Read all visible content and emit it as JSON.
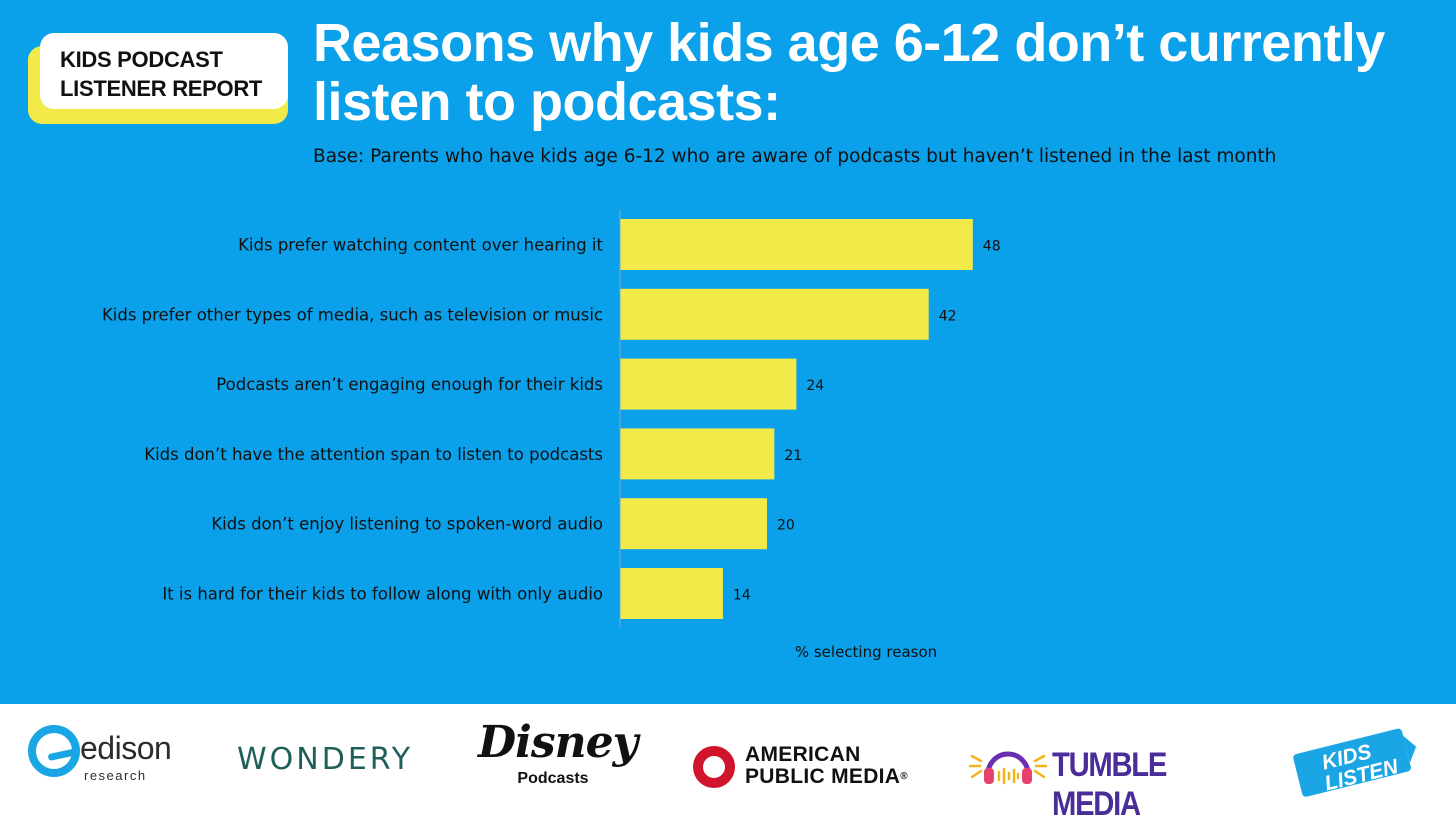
{
  "header": {
    "badge_line1": "KIDS PODCAST",
    "badge_line2": "LISTENER REPORT",
    "title": "Reasons why kids age 6-12 don’t currently listen to podcasts:",
    "subtitle": "Base: Parents who have kids age 6-12 who are aware of podcasts but haven’t listened in the last month"
  },
  "colors": {
    "background": "#0aa0ea",
    "bar": "#f1ea48",
    "badge_accent": "#f1ea48",
    "text_dark": "#111111",
    "title_text": "#ffffff"
  },
  "chart_data": {
    "type": "bar",
    "orientation": "horizontal",
    "title": "Reasons why kids age 6-12 don’t currently listen to podcasts:",
    "xlabel": "% selecting reason",
    "ylabel": "",
    "xlim": [
      0,
      100
    ],
    "grid": false,
    "legend": "none",
    "categories": [
      "Kids prefer watching content over hearing it",
      "Kids prefer other types of media, such as television or music",
      "Podcasts aren’t engaging enough for their kids",
      "Kids don’t have the attention span to listen to podcasts",
      "Kids don’t enjoy listening to spoken-word audio",
      "It is hard for their kids to follow along with only audio"
    ],
    "values": [
      48,
      42,
      24,
      21,
      20,
      14
    ]
  },
  "footer": {
    "logos": {
      "edison": "edison",
      "edison_sub": "research",
      "wondery": "WONDERY",
      "disney": "Disney",
      "disney_sub": "Podcasts",
      "apm_line1": "AMERICAN",
      "apm_line2": "PUBLIC MEDIA",
      "apm_reg": "®",
      "tumble": "TUMBLE MEDIA",
      "kids_listen_line1": "KIDS",
      "kids_listen_line2": "LISTEN"
    }
  }
}
